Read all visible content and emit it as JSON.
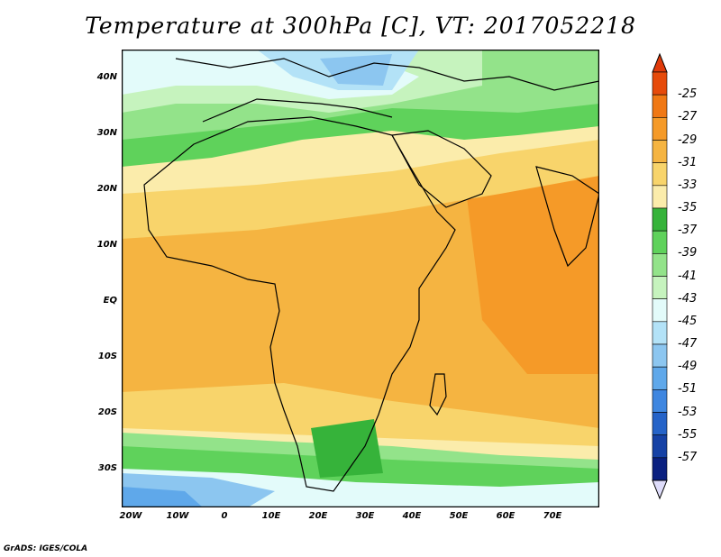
{
  "title": "Temperature at 300hPa [C], VT: 2017052218",
  "credit": "GrADS: IGES/COLA",
  "map": {
    "lat_labels": [
      "40N",
      "30N",
      "20N",
      "10N",
      "EQ",
      "10S",
      "20S",
      "30S"
    ],
    "lon_labels": [
      "20W",
      "10W",
      "0",
      "10E",
      "20E",
      "30E",
      "40E",
      "50E",
      "60E",
      "70E"
    ]
  },
  "colorbar": {
    "labels": [
      "-25",
      "-27",
      "-29",
      "-31",
      "-33",
      "-35",
      "-37",
      "-39",
      "-41",
      "-43",
      "-45",
      "-47",
      "-49",
      "-51",
      "-53",
      "-55",
      "-57"
    ],
    "colors": [
      "#e64a0a",
      "#f07814",
      "#f59a28",
      "#f5b441",
      "#f8d46b",
      "#fbecab",
      "#36b33a",
      "#5fd25b",
      "#93e38a",
      "#c6f3be",
      "#e3fbfa",
      "#b3e2f7",
      "#8cc6f0",
      "#5fa8ea",
      "#3e86e0",
      "#2563c8",
      "#1541a5",
      "#0a2080"
    ],
    "end_colors": {
      "top": "#e03a0a",
      "bottom": "#dedcfa"
    }
  },
  "colors": {
    "warm_orange": "#f5b441",
    "light_yellow": "#fbecab",
    "green": "#5fd25b",
    "pale_blue": "#e3fbfa",
    "blue": "#5fa8ea"
  }
}
